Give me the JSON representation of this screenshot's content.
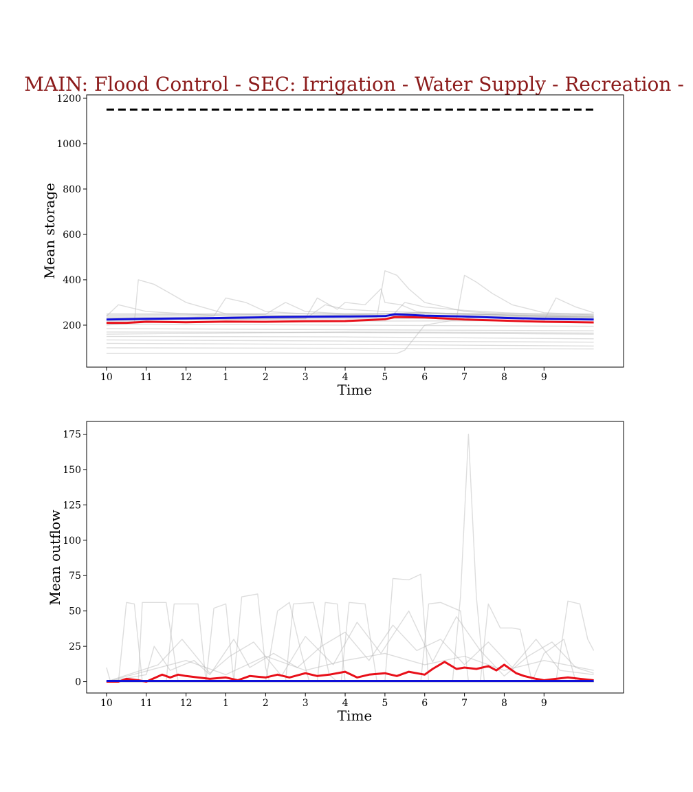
{
  "colors": {
    "title": "#8b1a1a",
    "red": "#e8101a",
    "blue": "#1010d8",
    "gray": "#b4b4b4",
    "black": "#000000"
  },
  "chart_data": [
    {
      "type": "line",
      "title": "MAIN: Flood Control - SEC: Irrigation - Water Supply - Recreation -",
      "xlabel": "Time",
      "ylabel": "Mean storage",
      "xlim": [
        -0.5,
        13.0
      ],
      "ylim": [
        15,
        1215
      ],
      "x_ticks": [
        0,
        1,
        2,
        3,
        4,
        5,
        6,
        7,
        8,
        9,
        10,
        11
      ],
      "x_tick_labels": [
        "10",
        "11",
        "12",
        "1",
        "2",
        "3",
        "4",
        "5",
        "6",
        "7",
        "8",
        "9"
      ],
      "y_ticks": [
        200,
        400,
        600,
        800,
        1000,
        1200
      ],
      "y_tick_labels": [
        "200",
        "400",
        "600",
        "800",
        "1000",
        "1200"
      ],
      "grid": false,
      "series": [
        {
          "style": "dashed-black",
          "x": [
            0,
            12.25
          ],
          "values": [
            1150,
            1150
          ]
        },
        {
          "style": "thick-blue",
          "x": [
            0,
            1,
            2,
            3,
            4,
            5,
            6,
            7,
            7.25,
            8,
            9,
            10,
            11,
            12.25
          ],
          "values": [
            225,
            228,
            230,
            232,
            235,
            237,
            238,
            240,
            248,
            242,
            238,
            232,
            228,
            225
          ]
        },
        {
          "style": "thick-red",
          "x": [
            0,
            0.5,
            1,
            2,
            3,
            4,
            5,
            6,
            7,
            7.25,
            8,
            9,
            10,
            11,
            12.25
          ],
          "values": [
            210,
            210,
            215,
            213,
            216,
            215,
            217,
            218,
            226,
            236,
            234,
            225,
            220,
            215,
            212
          ]
        },
        {
          "style": "gray",
          "x": [
            0,
            0.3,
            1,
            2,
            3,
            4,
            5,
            6,
            7,
            8,
            9,
            10,
            11,
            12.25
          ],
          "values": [
            240,
            290,
            260,
            250,
            240,
            235,
            240,
            245,
            250,
            255,
            250,
            245,
            240,
            238
          ]
        },
        {
          "style": "gray",
          "x": [
            0,
            0.7,
            0.8,
            1.2,
            1.5,
            2,
            3,
            4,
            5,
            6,
            7,
            8,
            9,
            10,
            11,
            12.25
          ],
          "values": [
            200,
            210,
            400,
            380,
            350,
            300,
            250,
            245,
            240,
            238,
            240,
            242,
            240,
            235,
            232,
            230
          ]
        },
        {
          "style": "gray",
          "x": [
            0,
            2,
            2.7,
            3,
            3.5,
            4,
            5,
            6,
            7,
            8,
            9,
            10,
            11,
            12.25
          ],
          "values": [
            235,
            235,
            240,
            320,
            300,
            260,
            250,
            248,
            250,
            255,
            250,
            245,
            240,
            235
          ]
        },
        {
          "style": "gray",
          "x": [
            0,
            3,
            5,
            5.3,
            5.8,
            6,
            6.5,
            6.9,
            7,
            7.4,
            7.8,
            8.3,
            9,
            10,
            11,
            12.25
          ],
          "values": [
            220,
            225,
            230,
            320,
            270,
            300,
            290,
            360,
            300,
            290,
            260,
            250,
            245,
            240,
            235,
            235
          ]
        },
        {
          "style": "gray",
          "x": [
            0,
            6.8,
            7.0,
            7.3,
            7.6,
            8.0,
            9,
            10,
            11,
            12.25
          ],
          "values": [
            230,
            235,
            440,
            420,
            360,
            300,
            260,
            250,
            245,
            240
          ]
        },
        {
          "style": "gray",
          "x": [
            0,
            8.8,
            9.0,
            9.3,
            9.7,
            10.2,
            11,
            12.25
          ],
          "values": [
            225,
            230,
            420,
            390,
            340,
            290,
            255,
            245
          ]
        },
        {
          "style": "gray",
          "x": [
            0,
            11,
            11.3,
            11.8,
            12.25
          ],
          "values": [
            215,
            220,
            320,
            280,
            255
          ]
        },
        {
          "style": "gray",
          "x": [
            0,
            5,
            5.5,
            6,
            7,
            8,
            9,
            10,
            11,
            12.25
          ],
          "values": [
            225,
            228,
            290,
            270,
            260,
            255,
            250,
            245,
            238,
            235
          ]
        },
        {
          "style": "gray",
          "x": [
            0,
            7.2,
            7.5,
            8,
            9,
            10,
            11,
            12.25
          ],
          "values": [
            240,
            245,
            300,
            280,
            265,
            255,
            248,
            245
          ]
        },
        {
          "style": "gray",
          "x": [
            0,
            4,
            4.5,
            5,
            6,
            7,
            8,
            9,
            10,
            11,
            12.25
          ],
          "values": [
            245,
            248,
            300,
            260,
            250,
            250,
            255,
            248,
            245,
            242,
            240
          ]
        },
        {
          "style": "gray",
          "x": [
            0,
            12.25
          ],
          "values": [
            250,
            250
          ]
        },
        {
          "style": "gray",
          "x": [
            0,
            6,
            12.25
          ],
          "values": [
            205,
            200,
            195
          ]
        },
        {
          "style": "gray",
          "x": [
            0,
            6,
            12.25
          ],
          "values": [
            185,
            180,
            175
          ]
        },
        {
          "style": "gray",
          "x": [
            0,
            6,
            12.25
          ],
          "values": [
            170,
            168,
            160
          ]
        },
        {
          "style": "gray",
          "x": [
            0,
            6,
            12.25
          ],
          "values": [
            150,
            148,
            140
          ]
        },
        {
          "style": "gray",
          "x": [
            0,
            6,
            12.25
          ],
          "values": [
            135,
            130,
            125
          ]
        },
        {
          "style": "gray",
          "x": [
            0,
            6,
            12.25
          ],
          "values": [
            120,
            115,
            108
          ]
        },
        {
          "style": "gray",
          "x": [
            0,
            6,
            12.25
          ],
          "values": [
            100,
            98,
            95
          ]
        },
        {
          "style": "gray",
          "x": [
            0,
            7.3,
            7.5,
            8,
            9,
            10,
            11,
            12.25
          ],
          "values": [
            75,
            75,
            90,
            200,
            230,
            240,
            240,
            235
          ]
        },
        {
          "style": "gray",
          "x": [
            0,
            3,
            6,
            9,
            12.25
          ],
          "values": [
            160,
            165,
            170,
            168,
            165
          ]
        }
      ]
    },
    {
      "type": "line",
      "title": "",
      "xlabel": "Time",
      "ylabel": "Mean outflow",
      "xlim": [
        -0.5,
        13.0
      ],
      "ylim": [
        -8,
        184
      ],
      "x_ticks": [
        0,
        1,
        2,
        3,
        4,
        5,
        6,
        7,
        8,
        9,
        10,
        11
      ],
      "x_tick_labels": [
        "10",
        "11",
        "12",
        "1",
        "2",
        "3",
        "4",
        "5",
        "6",
        "7",
        "8",
        "9"
      ],
      "y_ticks": [
        0,
        25,
        50,
        75,
        100,
        125,
        150,
        175
      ],
      "y_tick_labels": [
        "0",
        "25",
        "50",
        "75",
        "100",
        "125",
        "150",
        "175"
      ],
      "grid": false,
      "series": [
        {
          "style": "thick-red",
          "x": [
            0,
            0.3,
            0.5,
            0.8,
            1.0,
            1.4,
            1.6,
            1.8,
            2.0,
            2.3,
            2.6,
            3.0,
            3.3,
            3.6,
            4.0,
            4.3,
            4.6,
            5.0,
            5.3,
            5.6,
            6.0,
            6.3,
            6.6,
            7.0,
            7.3,
            7.6,
            8.0,
            8.2,
            8.5,
            8.8,
            9.0,
            9.3,
            9.6,
            9.8,
            10.0,
            10.3,
            10.5,
            10.8,
            11.0,
            11.3,
            11.6,
            11.9,
            12.25
          ],
          "values": [
            0,
            0,
            2,
            1,
            0,
            5,
            3,
            5,
            4,
            3,
            2,
            3,
            1,
            4,
            3,
            5,
            3,
            6,
            4,
            5,
            7,
            3,
            5,
            6,
            4,
            7,
            5,
            9,
            14,
            9,
            10,
            9,
            11,
            8,
            12,
            6,
            4,
            2,
            1,
            2,
            3,
            2,
            1
          ]
        },
        {
          "style": "thick-blue",
          "x": [
            0,
            12.25
          ],
          "values": [
            0.5,
            0.5
          ]
        },
        {
          "style": "gray",
          "x": [
            0,
            0.3,
            0.5,
            0.7,
            0.9,
            1.1,
            12.25
          ],
          "values": [
            0,
            0,
            56,
            55,
            0,
            0,
            0
          ]
        },
        {
          "style": "gray",
          "x": [
            0,
            0.8,
            0.9,
            1.5,
            1.8,
            1.9,
            12.25
          ],
          "values": [
            0,
            0,
            56,
            56,
            0,
            0,
            0
          ]
        },
        {
          "style": "gray",
          "x": [
            0,
            1.5,
            1.7,
            2.3,
            2.5,
            2.7,
            12.25
          ],
          "values": [
            0,
            0,
            55,
            55,
            0,
            0,
            0
          ]
        },
        {
          "style": "gray",
          "x": [
            0,
            2.5,
            2.7,
            3.0,
            3.2,
            3.4,
            12.25
          ],
          "values": [
            0,
            0,
            52,
            55,
            0,
            0,
            0
          ]
        },
        {
          "style": "gray",
          "x": [
            0,
            3.2,
            3.4,
            3.8,
            4.0,
            4.1,
            12.25
          ],
          "values": [
            0,
            0,
            60,
            62,
            10,
            0,
            0
          ]
        },
        {
          "style": "gray",
          "x": [
            0,
            4.0,
            4.3,
            4.6,
            4.9,
            5.1,
            12.25
          ],
          "values": [
            0,
            0,
            50,
            56,
            20,
            0,
            0
          ]
        },
        {
          "style": "gray",
          "x": [
            0,
            4.5,
            4.7,
            5.2,
            5.6,
            5.8,
            12.25
          ],
          "values": [
            0,
            0,
            55,
            56,
            5,
            0,
            0
          ]
        },
        {
          "style": "gray",
          "x": [
            0,
            5.3,
            5.5,
            5.8,
            6.0,
            6.2,
            12.25
          ],
          "values": [
            0,
            0,
            56,
            55,
            0,
            0,
            0
          ]
        },
        {
          "style": "gray",
          "x": [
            0,
            5.9,
            6.1,
            6.5,
            6.8,
            7.0,
            12.25
          ],
          "values": [
            0,
            0,
            56,
            55,
            0,
            0,
            0
          ]
        },
        {
          "style": "gray",
          "x": [
            0,
            7.0,
            7.2,
            7.6,
            7.9,
            8.1,
            12.25
          ],
          "values": [
            0,
            0,
            73,
            72,
            76,
            0,
            0
          ]
        },
        {
          "style": "gray",
          "x": [
            0,
            7.9,
            8.1,
            8.4,
            8.9,
            9.1,
            12.25
          ],
          "values": [
            0,
            0,
            55,
            56,
            50,
            0,
            0
          ]
        },
        {
          "style": "gray",
          "x": [
            0,
            8.7,
            8.9,
            9.1,
            9.3,
            9.5,
            12.25
          ],
          "values": [
            0,
            0,
            60,
            175,
            60,
            0,
            0
          ]
        },
        {
          "style": "gray",
          "x": [
            0,
            9.4,
            9.6,
            9.9,
            10.2,
            10.4,
            10.7,
            12.25
          ],
          "values": [
            0,
            0,
            55,
            38,
            38,
            37,
            0,
            0
          ]
        },
        {
          "style": "gray",
          "x": [
            0,
            10.7,
            11.0,
            11.5,
            11.8,
            12.0,
            12.25
          ],
          "values": [
            0,
            0,
            20,
            30,
            0,
            0,
            0
          ]
        },
        {
          "style": "gray",
          "x": [
            0,
            11.3,
            11.6,
            11.9,
            12.1,
            12.25
          ],
          "values": [
            0,
            0,
            57,
            55,
            30,
            22
          ]
        },
        {
          "style": "gray",
          "x": [
            0,
            0.1,
            0.2,
            12.25
          ],
          "values": [
            10,
            0,
            0,
            0
          ]
        },
        {
          "style": "gray",
          "x": [
            0,
            1.0,
            1.2,
            1.6,
            2.2,
            2.6,
            3.2,
            3.6,
            4.2,
            4.8,
            5.4,
            6.0,
            6.6,
            7.2,
            7.8,
            8.4,
            9.0,
            9.6,
            10.2,
            10.8,
            11.4,
            12.25
          ],
          "values": [
            0,
            5,
            25,
            8,
            15,
            5,
            30,
            10,
            20,
            10,
            25,
            35,
            15,
            40,
            22,
            30,
            12,
            28,
            10,
            30,
            8,
            5
          ]
        },
        {
          "style": "gray",
          "x": [
            0,
            1.3,
            1.9,
            2.6,
            3.1,
            3.7,
            4.4,
            5.0,
            5.7,
            6.3,
            6.9,
            7.6,
            8.2,
            8.8,
            9.4,
            10.0,
            10.6,
            11.2,
            11.8,
            12.25
          ],
          "values": [
            0,
            12,
            30,
            6,
            18,
            28,
            4,
            32,
            12,
            42,
            20,
            50,
            14,
            46,
            22,
            4,
            18,
            28,
            10,
            6
          ]
        },
        {
          "style": "gray",
          "x": [
            0,
            2,
            3,
            4,
            5,
            6,
            7,
            8,
            9,
            10,
            11,
            12.25
          ],
          "values": [
            0,
            15,
            5,
            18,
            8,
            15,
            20,
            12,
            18,
            8,
            15,
            8
          ]
        }
      ]
    }
  ]
}
